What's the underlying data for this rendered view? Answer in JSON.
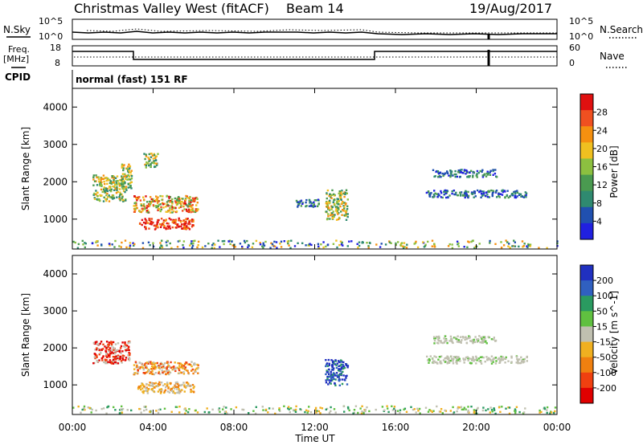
{
  "header": {
    "station": "Christmas Valley West (fitACF)",
    "beam": "Beam 14",
    "date": "19/Aug/2017"
  },
  "top_panels": {
    "nsky_label": "N.Sky",
    "nsearch_label": "N.Search",
    "noise_ticks": [
      "10^5",
      "10^0"
    ],
    "freq_label_1": "Freq.",
    "freq_label_2": "[MHz]",
    "freq_ticks": [
      "18",
      "8"
    ],
    "nave_label": "Nave",
    "nave_ticks": [
      "60",
      "0"
    ],
    "cpid_label": "CPID",
    "cpid_text": "normal (fast) 151 RF"
  },
  "chart_data": [
    {
      "type": "heatmap",
      "name": "power",
      "ylabel": "Slant Range [km]",
      "yticks": [
        1000,
        2000,
        3000,
        4000
      ],
      "ylim": [
        200,
        4500
      ],
      "colorbar": {
        "label": "Power [dB]",
        "ticks": [
          "4",
          "8",
          "12",
          "16",
          "20",
          "24",
          "28"
        ],
        "colors": [
          "#2020e0",
          "#2050b0",
          "#2f8a70",
          "#4a9a50",
          "#8cc040",
          "#f0c020",
          "#f59010",
          "#f05020",
          "#e01010"
        ]
      },
      "regions": [
        {
          "t": [
            1.0,
            2.6
          ],
          "r": [
            1500,
            2200
          ],
          "level": "mid"
        },
        {
          "t": [
            2.4,
            2.9
          ],
          "r": [
            1800,
            2500
          ],
          "level": "mid"
        },
        {
          "t": [
            3.0,
            6.2
          ],
          "r": [
            1200,
            1650
          ],
          "level": "mixed"
        },
        {
          "t": [
            3.3,
            6.0
          ],
          "r": [
            750,
            1050
          ],
          "level": "high"
        },
        {
          "t": [
            3.5,
            4.2
          ],
          "r": [
            2400,
            2800
          ],
          "level": "mid"
        },
        {
          "t": [
            11.0,
            12.2
          ],
          "r": [
            1350,
            1550
          ],
          "level": "low"
        },
        {
          "t": [
            12.5,
            13.6
          ],
          "r": [
            1000,
            1800
          ],
          "level": "mid"
        },
        {
          "t": [
            17.8,
            21.0
          ],
          "r": [
            2150,
            2350
          ],
          "level": "low"
        },
        {
          "t": [
            17.5,
            22.5
          ],
          "r": [
            1600,
            1800
          ],
          "level": "low"
        },
        {
          "t": [
            0.0,
            24.0
          ],
          "r": [
            250,
            450
          ],
          "level": "ground"
        }
      ]
    },
    {
      "type": "heatmap",
      "name": "velocity",
      "ylabel": "Slant Range [km]",
      "yticks": [
        1000,
        2000,
        3000,
        4000
      ],
      "ylim": [
        200,
        4500
      ],
      "colorbar": {
        "label": "Velocity [m s^-1]",
        "ticks": [
          "200",
          "100",
          "50",
          "15",
          "-15",
          "-50",
          "-100",
          "-200"
        ],
        "colors": [
          "#2030c0",
          "#3060c0",
          "#2a9a60",
          "#60c040",
          "#c0c0b0",
          "#f0b020",
          "#f08010",
          "#f04010",
          "#e00000"
        ]
      },
      "regions": [
        {
          "t": [
            1.0,
            2.8
          ],
          "r": [
            1600,
            2200
          ],
          "color": "negative-high"
        },
        {
          "t": [
            3.0,
            6.2
          ],
          "r": [
            1300,
            1650
          ],
          "color": "negative-mid"
        },
        {
          "t": [
            3.2,
            6.0
          ],
          "r": [
            800,
            1100
          ],
          "color": "negative-low"
        },
        {
          "t": [
            12.5,
            13.6
          ],
          "r": [
            1000,
            1700
          ],
          "color": "positive-high"
        },
        {
          "t": [
            17.8,
            21.0
          ],
          "r": [
            2150,
            2350
          ],
          "color": "near-zero"
        },
        {
          "t": [
            17.5,
            22.5
          ],
          "r": [
            1600,
            1800
          ],
          "color": "near-zero"
        },
        {
          "t": [
            0.0,
            24.0
          ],
          "r": [
            250,
            450
          ],
          "color": "positive-low"
        }
      ]
    }
  ],
  "xaxis": {
    "label": "Time UT",
    "ticks": [
      "00:00",
      "04:00",
      "08:00",
      "12:00",
      "16:00",
      "20:00",
      "00:00"
    ]
  }
}
